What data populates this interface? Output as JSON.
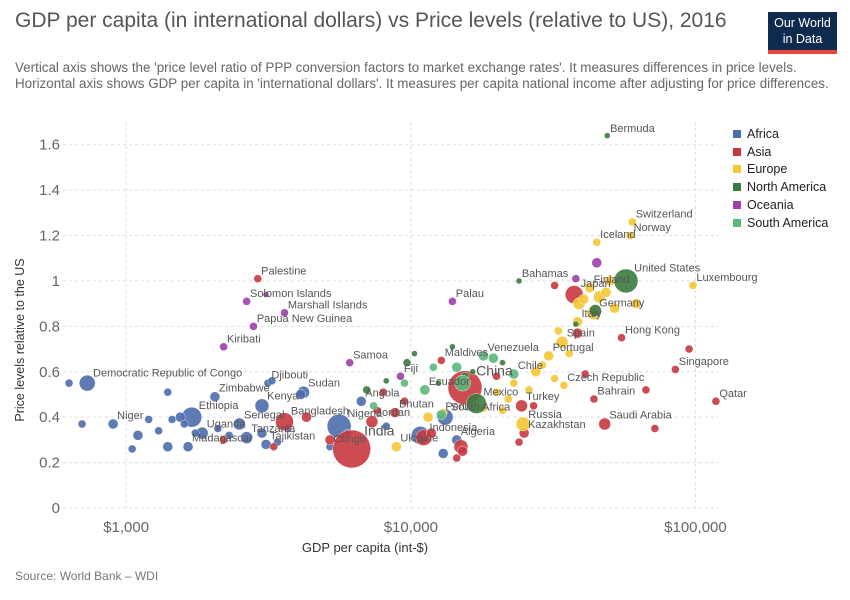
{
  "title": "GDP per capita (in international dollars) vs Price levels (relative to US), 2016",
  "subtitle": "Vertical axis shows the 'price level ratio of PPP conversion factors to market exchange rates'. It measures differences in price levels. Horizontal axis shows GDP per capita in 'international dollars'. It measures per capita national income after adjusting for price differences.",
  "logo": {
    "line1": "Our World",
    "line2": "in Data"
  },
  "source": "Source: World Bank – WDI",
  "colors": {
    "Africa": "#4c6dab",
    "Asia": "#c8393f",
    "Europe": "#f5c633",
    "North America": "#3a7b3e",
    "Oceania": "#9c3fa8",
    "South America": "#5ab87b"
  },
  "chart_data": {
    "type": "scatter",
    "title": "GDP per capita (in international dollars) vs Price levels (relative to US), 2016",
    "xlabel": "GDP per capita (int-$)",
    "ylabel": "Price levels relative to the US",
    "xscale": "log",
    "xlim": [
      600,
      120000
    ],
    "ylim": [
      0,
      1.7
    ],
    "xticks": [
      1000,
      10000,
      100000
    ],
    "xtick_labels": [
      "$1,000",
      "$10,000",
      "$100,000"
    ],
    "yticks": [
      0,
      0.2,
      0.4,
      0.6,
      0.8,
      1,
      1.2,
      1.4,
      1.6
    ],
    "ytick_labels": [
      "0",
      "0.2",
      "0.4",
      "0.6",
      "0.8",
      "1",
      "1.2",
      "1.4",
      "1.6"
    ],
    "grid": true,
    "legend_position": "right",
    "series": [
      {
        "name": "Africa",
        "points": [
          {
            "x": 730,
            "y": 0.55,
            "s": 8,
            "label": "Democratic Republic of Congo"
          },
          {
            "x": 900,
            "y": 0.37,
            "s": 5,
            "label": "Niger"
          },
          {
            "x": 1700,
            "y": 0.4,
            "s": 10,
            "label": "Ethiopia"
          },
          {
            "x": 1850,
            "y": 0.33,
            "s": 6,
            "label": "Uganda"
          },
          {
            "x": 1650,
            "y": 0.27,
            "s": 5,
            "label": "Madagascar"
          },
          {
            "x": 2050,
            "y": 0.49,
            "s": 5,
            "label": "Zimbabwe"
          },
          {
            "x": 2500,
            "y": 0.37,
            "s": 6,
            "label": "Senegal"
          },
          {
            "x": 2650,
            "y": 0.31,
            "s": 6,
            "label": "Tanzania"
          },
          {
            "x": 3100,
            "y": 0.28,
            "s": 5,
            "label": "Tajikistan"
          },
          {
            "x": 3000,
            "y": 0.45,
            "s": 7,
            "label": "Kenya"
          },
          {
            "x": 3150,
            "y": 0.55,
            "s": 4,
            "label": "Djibouti"
          },
          {
            "x": 4200,
            "y": 0.51,
            "s": 6,
            "label": "Sudan"
          },
          {
            "x": 5600,
            "y": 0.36,
            "s": 12,
            "label": "Nigeria"
          },
          {
            "x": 6700,
            "y": 0.47,
            "s": 5,
            "label": "Angola"
          },
          {
            "x": 5200,
            "y": 0.27,
            "s": 4,
            "label": "Congo"
          },
          {
            "x": 10800,
            "y": 0.32,
            "s": 9
          },
          {
            "x": 13000,
            "y": 0.24,
            "s": 5
          },
          {
            "x": 13200,
            "y": 0.4,
            "s": 8,
            "label": "South Africa"
          },
          {
            "x": 14500,
            "y": 0.3,
            "s": 5,
            "label": "Algeria"
          },
          {
            "x": 630,
            "y": 0.55,
            "s": 4
          },
          {
            "x": 700,
            "y": 0.37,
            "s": 4
          },
          {
            "x": 1050,
            "y": 0.26,
            "s": 4
          },
          {
            "x": 1100,
            "y": 0.32,
            "s": 5
          },
          {
            "x": 1200,
            "y": 0.39,
            "s": 4
          },
          {
            "x": 1400,
            "y": 0.27,
            "s": 5
          },
          {
            "x": 1450,
            "y": 0.39,
            "s": 4
          },
          {
            "x": 1550,
            "y": 0.4,
            "s": 5
          },
          {
            "x": 1400,
            "y": 0.51,
            "s": 4
          },
          {
            "x": 1300,
            "y": 0.34,
            "s": 4
          },
          {
            "x": 1750,
            "y": 0.33,
            "s": 4
          },
          {
            "x": 2300,
            "y": 0.32,
            "s": 4
          },
          {
            "x": 3000,
            "y": 0.33,
            "s": 5
          },
          {
            "x": 3400,
            "y": 0.29,
            "s": 4
          },
          {
            "x": 3700,
            "y": 0.35,
            "s": 4
          },
          {
            "x": 4100,
            "y": 0.5,
            "s": 5
          },
          {
            "x": 3250,
            "y": 0.56,
            "s": 4
          },
          {
            "x": 2100,
            "y": 0.35,
            "s": 4
          },
          {
            "x": 1600,
            "y": 0.37,
            "s": 4
          },
          {
            "x": 6000,
            "y": 0.33,
            "s": 4
          },
          {
            "x": 8200,
            "y": 0.36,
            "s": 4
          }
        ]
      },
      {
        "name": "Asia",
        "points": [
          {
            "x": 2900,
            "y": 1.01,
            "s": 4,
            "label": "Palestine"
          },
          {
            "x": 3600,
            "y": 0.38,
            "s": 9,
            "label": "Bangladesh"
          },
          {
            "x": 6200,
            "y": 0.26,
            "s": 19,
            "label": "India"
          },
          {
            "x": 7300,
            "y": 0.38,
            "s": 6,
            "label": "Jordan"
          },
          {
            "x": 8800,
            "y": 0.42,
            "s": 5,
            "label": "Bhutan"
          },
          {
            "x": 11100,
            "y": 0.31,
            "s": 8,
            "label": "Indonesia"
          },
          {
            "x": 12800,
            "y": 0.65,
            "s": 4,
            "label": "Maldives"
          },
          {
            "x": 15500,
            "y": 0.53,
            "s": 17,
            "label": "China"
          },
          {
            "x": 24500,
            "y": 0.45,
            "s": 6,
            "label": "Turkey"
          },
          {
            "x": 25000,
            "y": 0.33,
            "s": 5,
            "label": "Kazakhstan"
          },
          {
            "x": 37500,
            "y": 0.94,
            "s": 9,
            "label": "Japan"
          },
          {
            "x": 44000,
            "y": 0.48,
            "s": 4,
            "label": "Bahrain"
          },
          {
            "x": 48000,
            "y": 0.37,
            "s": 6,
            "label": "Saudi Arabia"
          },
          {
            "x": 55000,
            "y": 0.75,
            "s": 4,
            "label": "Hong Kong"
          },
          {
            "x": 85000,
            "y": 0.61,
            "s": 4,
            "label": "Singapore"
          },
          {
            "x": 118000,
            "y": 0.47,
            "s": 4,
            "label": "Qatar"
          },
          {
            "x": 4300,
            "y": 0.4,
            "s": 5
          },
          {
            "x": 5200,
            "y": 0.3,
            "s": 5
          },
          {
            "x": 7600,
            "y": 0.43,
            "s": 4
          },
          {
            "x": 8000,
            "y": 0.51,
            "s": 4
          },
          {
            "x": 9500,
            "y": 0.47,
            "s": 4
          },
          {
            "x": 11800,
            "y": 0.33,
            "s": 5
          },
          {
            "x": 15000,
            "y": 0.27,
            "s": 7
          },
          {
            "x": 15200,
            "y": 0.25,
            "s": 5
          },
          {
            "x": 14500,
            "y": 0.22,
            "s": 4
          },
          {
            "x": 20000,
            "y": 0.58,
            "s": 4
          },
          {
            "x": 24000,
            "y": 0.29,
            "s": 4
          },
          {
            "x": 27000,
            "y": 0.45,
            "s": 4
          },
          {
            "x": 38500,
            "y": 0.77,
            "s": 5
          },
          {
            "x": 41000,
            "y": 0.59,
            "s": 4
          },
          {
            "x": 67000,
            "y": 0.52,
            "s": 4
          },
          {
            "x": 72000,
            "y": 0.35,
            "s": 4
          },
          {
            "x": 95000,
            "y": 0.7,
            "s": 4
          },
          {
            "x": 32000,
            "y": 0.98,
            "s": 4
          },
          {
            "x": 2200,
            "y": 0.3,
            "s": 4
          },
          {
            "x": 3300,
            "y": 0.27,
            "s": 4
          }
        ]
      },
      {
        "name": "Europe",
        "points": [
          {
            "x": 8900,
            "y": 0.27,
            "s": 5,
            "label": "Ukraine"
          },
          {
            "x": 24800,
            "y": 0.37,
            "s": 7,
            "label": "Russia"
          },
          {
            "x": 30500,
            "y": 0.67,
            "s": 5,
            "label": "Portugal"
          },
          {
            "x": 34000,
            "y": 0.73,
            "s": 6,
            "label": "Spain"
          },
          {
            "x": 34500,
            "y": 0.54,
            "s": 4,
            "label": "Czech Republic"
          },
          {
            "x": 38500,
            "y": 0.82,
            "s": 5,
            "label": "Italy"
          },
          {
            "x": 44000,
            "y": 0.86,
            "s": 7,
            "label": "Germany"
          },
          {
            "x": 42500,
            "y": 0.97,
            "s": 5,
            "label": "Finland"
          },
          {
            "x": 45000,
            "y": 1.17,
            "s": 4,
            "label": "Iceland"
          },
          {
            "x": 60000,
            "y": 1.26,
            "s": 4,
            "label": "Switzerland"
          },
          {
            "x": 59000,
            "y": 1.2,
            "s": 4,
            "label": "Norway"
          },
          {
            "x": 98000,
            "y": 0.98,
            "s": 4,
            "label": "Luxembourg"
          },
          {
            "x": 11500,
            "y": 0.4,
            "s": 5
          },
          {
            "x": 13000,
            "y": 0.42,
            "s": 4
          },
          {
            "x": 18000,
            "y": 0.44,
            "s": 4
          },
          {
            "x": 20000,
            "y": 0.51,
            "s": 4
          },
          {
            "x": 22000,
            "y": 0.48,
            "s": 4
          },
          {
            "x": 23000,
            "y": 0.55,
            "s": 4
          },
          {
            "x": 26000,
            "y": 0.52,
            "s": 4
          },
          {
            "x": 27500,
            "y": 0.6,
            "s": 5
          },
          {
            "x": 29000,
            "y": 0.63,
            "s": 4
          },
          {
            "x": 32000,
            "y": 0.57,
            "s": 4
          },
          {
            "x": 36000,
            "y": 0.68,
            "s": 4
          },
          {
            "x": 39000,
            "y": 0.9,
            "s": 6
          },
          {
            "x": 40500,
            "y": 0.92,
            "s": 5
          },
          {
            "x": 46000,
            "y": 0.93,
            "s": 6
          },
          {
            "x": 48500,
            "y": 0.95,
            "s": 5
          },
          {
            "x": 50000,
            "y": 1.0,
            "s": 5
          },
          {
            "x": 52000,
            "y": 0.88,
            "s": 5
          },
          {
            "x": 62000,
            "y": 0.9,
            "s": 5
          },
          {
            "x": 33000,
            "y": 0.78,
            "s": 4
          },
          {
            "x": 21000,
            "y": 0.43,
            "s": 4
          }
        ]
      },
      {
        "name": "North America",
        "points": [
          {
            "x": 57000,
            "y": 1.0,
            "s": 12,
            "label": "United States"
          },
          {
            "x": 17000,
            "y": 0.46,
            "s": 10,
            "label": "Mexico"
          },
          {
            "x": 49000,
            "y": 1.64,
            "s": 3,
            "label": "Bermuda"
          },
          {
            "x": 24000,
            "y": 1.0,
            "s": 3,
            "label": "Bahamas"
          },
          {
            "x": 44500,
            "y": 0.87,
            "s": 6
          },
          {
            "x": 7000,
            "y": 0.52,
            "s": 4
          },
          {
            "x": 8200,
            "y": 0.56,
            "s": 3
          },
          {
            "x": 9700,
            "y": 0.64,
            "s": 4
          },
          {
            "x": 10300,
            "y": 0.68,
            "s": 3
          },
          {
            "x": 14000,
            "y": 0.71,
            "s": 3
          },
          {
            "x": 15500,
            "y": 0.58,
            "s": 4
          },
          {
            "x": 16500,
            "y": 0.6,
            "s": 3
          },
          {
            "x": 21000,
            "y": 0.64,
            "s": 3
          },
          {
            "x": 38000,
            "y": 0.81,
            "s": 3
          },
          {
            "x": 12500,
            "y": 0.55,
            "s": 3
          }
        ]
      },
      {
        "name": "Oceania",
        "points": [
          {
            "x": 2650,
            "y": 0.91,
            "s": 4,
            "label": "Solomon Islands"
          },
          {
            "x": 3600,
            "y": 0.86,
            "s": 4,
            "label": "Marshall Islands"
          },
          {
            "x": 2800,
            "y": 0.8,
            "s": 4,
            "label": "Papua New Guinea"
          },
          {
            "x": 2200,
            "y": 0.71,
            "s": 4,
            "label": "Kiribati"
          },
          {
            "x": 6100,
            "y": 0.64,
            "s": 4,
            "label": "Samoa"
          },
          {
            "x": 9200,
            "y": 0.58,
            "s": 4,
            "label": "Fiji"
          },
          {
            "x": 14000,
            "y": 0.91,
            "s": 4,
            "label": "Palau"
          },
          {
            "x": 45000,
            "y": 1.08,
            "s": 5
          },
          {
            "x": 38000,
            "y": 1.01,
            "s": 4
          },
          {
            "x": 3100,
            "y": 0.94,
            "s": 3
          }
        ]
      },
      {
        "name": "South America",
        "points": [
          {
            "x": 11200,
            "y": 0.52,
            "s": 5,
            "label": "Ecuador"
          },
          {
            "x": 12800,
            "y": 0.41,
            "s": 5,
            "label": "Peru"
          },
          {
            "x": 18000,
            "y": 0.67,
            "s": 5,
            "label": "Venezuela"
          },
          {
            "x": 23000,
            "y": 0.59,
            "s": 5,
            "label": "Chile"
          },
          {
            "x": 15200,
            "y": 0.55,
            "s": 8
          },
          {
            "x": 14500,
            "y": 0.62,
            "s": 5
          },
          {
            "x": 19500,
            "y": 0.66,
            "s": 5
          },
          {
            "x": 9500,
            "y": 0.55,
            "s": 4
          },
          {
            "x": 7400,
            "y": 0.45,
            "s": 4
          },
          {
            "x": 12000,
            "y": 0.62,
            "s": 4
          }
        ]
      }
    ]
  }
}
